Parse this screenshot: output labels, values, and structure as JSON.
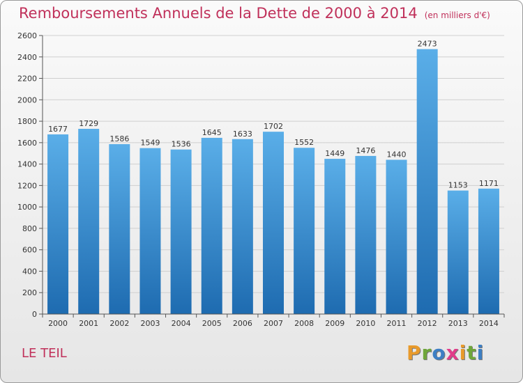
{
  "chart_data": {
    "type": "bar",
    "title": "Remboursements Annuels de la Dette de 2000 à 2014",
    "subtitle": "(en milliers d'€)",
    "categories": [
      "2000",
      "2001",
      "2002",
      "2003",
      "2004",
      "2005",
      "2006",
      "2007",
      "2008",
      "2009",
      "2010",
      "2011",
      "2012",
      "2013",
      "2014"
    ],
    "values": [
      1677,
      1729,
      1586,
      1549,
      1536,
      1645,
      1633,
      1702,
      1552,
      1449,
      1476,
      1440,
      2473,
      1153,
      1171
    ],
    "ylim": [
      0,
      2600
    ],
    "yticks": [
      0,
      200,
      400,
      600,
      800,
      1000,
      1200,
      1400,
      1600,
      1800,
      2000,
      2200,
      2400,
      2600
    ],
    "xlabel": "",
    "ylabel": "",
    "grid": true
  },
  "commune": "LE TEIL",
  "logo": {
    "letters": [
      "P",
      "r",
      "o",
      "x",
      "i",
      "t",
      "i"
    ],
    "colors": [
      "#e89a2b",
      "#6fa63a",
      "#3d7fc4",
      "#e13d8a",
      "#e89a2b",
      "#6fa63a",
      "#3d7fc4"
    ]
  },
  "colors": {
    "bar_top": "#5aaee8",
    "bar_bottom": "#1e6bb0",
    "title": "#c0305a"
  }
}
